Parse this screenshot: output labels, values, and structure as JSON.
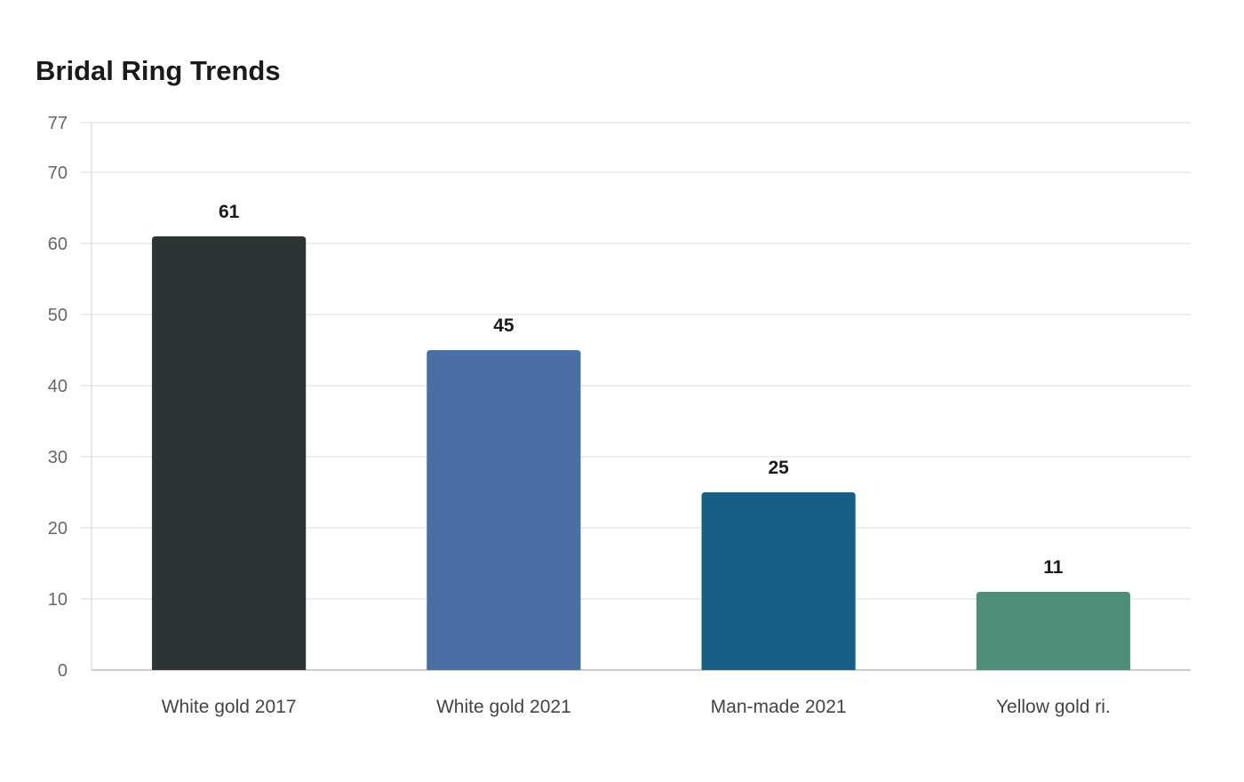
{
  "chart_data": {
    "type": "bar",
    "title": "Bridal Ring Trends",
    "xlabel": "",
    "ylabel": "",
    "categories": [
      "White gold 2017",
      "White gold 2021",
      "Man-made 2021",
      "Yellow gold ri."
    ],
    "values": [
      61,
      45,
      25,
      11
    ],
    "colors": [
      "#2d3436",
      "#4a6fa5",
      "#166088",
      "#4f8f7a"
    ],
    "ylim": [
      0,
      77
    ],
    "yticks": [
      0,
      10,
      20,
      30,
      40,
      50,
      60,
      70,
      77
    ],
    "grid": true,
    "legend": "none"
  }
}
